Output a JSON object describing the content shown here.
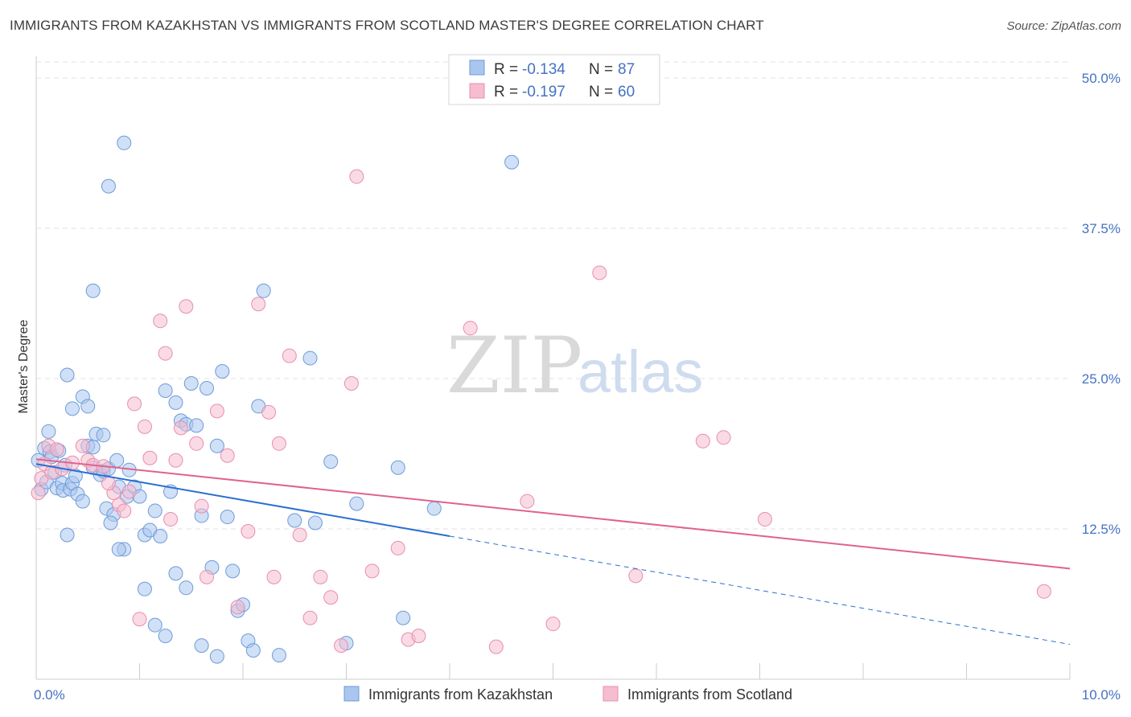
{
  "header": {
    "title": "IMMIGRANTS FROM KAZAKHSTAN VS IMMIGRANTS FROM SCOTLAND MASTER'S DEGREE CORRELATION CHART",
    "source": "Source: ZipAtlas.com"
  },
  "watermark": {
    "zip": "ZIP",
    "atlas": "atlas"
  },
  "colors": {
    "blue_fill": "#a9c6ee",
    "blue_stroke": "#6e9bd8",
    "blue_line": "#2a6fd1",
    "pink_fill": "#f6bcd0",
    "pink_stroke": "#e78fae",
    "pink_line": "#e0628d",
    "tick_blue": "#4472c4",
    "grid": "#e2e2e2"
  },
  "stats": {
    "rows": [
      {
        "r_label": "R = ",
        "r_value": "-0.134",
        "n_label": "N = ",
        "n_value": "87"
      },
      {
        "r_label": "R = ",
        "r_value": "-0.197",
        "n_label": "N = ",
        "n_value": "60"
      }
    ]
  },
  "chart_data": {
    "type": "scatter",
    "title": "IMMIGRANTS FROM KAZAKHSTAN VS IMMIGRANTS FROM SCOTLAND MASTER'S DEGREE CORRELATION CHART",
    "xlabel": "",
    "ylabel": "Master's Degree",
    "xlim": [
      0,
      10
    ],
    "ylim": [
      0,
      50
    ],
    "x_ticks": [
      {
        "value": 0,
        "label": "0.0%"
      },
      {
        "value": 10,
        "label": "10.0%"
      }
    ],
    "x_minor_ticks": [
      1,
      2,
      3,
      4,
      5,
      6,
      7,
      8,
      9,
      10
    ],
    "y_ticks": [
      {
        "value": 12.5,
        "label": "12.5%"
      },
      {
        "value": 25,
        "label": "25.0%"
      },
      {
        "value": 37.5,
        "label": "37.5%"
      },
      {
        "value": 50,
        "label": "50.0%"
      }
    ],
    "grid": true,
    "legend_position": "bottom-center",
    "series": [
      {
        "name": "Immigrants from Kazakhstan",
        "color": "#a9c6ee",
        "trend": {
          "x0": 0,
          "y0": 17.9,
          "x1": 4.0,
          "y1": 11.9,
          "x_dash_end": 10.0,
          "y_dash_end": 2.9
        },
        "points": [
          [
            0.02,
            18.2
          ],
          [
            0.05,
            15.8
          ],
          [
            0.08,
            19.2
          ],
          [
            0.1,
            16.4
          ],
          [
            0.12,
            20.6
          ],
          [
            0.13,
            18.9
          ],
          [
            0.15,
            18.5
          ],
          [
            0.18,
            17.2
          ],
          [
            0.2,
            15.9
          ],
          [
            0.22,
            19.0
          ],
          [
            0.25,
            16.3
          ],
          [
            0.26,
            15.7
          ],
          [
            0.28,
            17.8
          ],
          [
            0.3,
            12.0
          ],
          [
            0.33,
            15.8
          ],
          [
            0.35,
            16.3
          ],
          [
            0.38,
            16.9
          ],
          [
            0.4,
            15.4
          ],
          [
            0.45,
            14.8
          ],
          [
            0.5,
            19.4
          ],
          [
            0.55,
            17.6
          ],
          [
            0.58,
            20.4
          ],
          [
            0.62,
            17.0
          ],
          [
            0.65,
            17.3
          ],
          [
            0.68,
            14.2
          ],
          [
            0.7,
            17.5
          ],
          [
            0.75,
            13.7
          ],
          [
            0.78,
            18.2
          ],
          [
            0.8,
            16.0
          ],
          [
            0.85,
            10.8
          ],
          [
            0.88,
            15.2
          ],
          [
            0.9,
            17.4
          ],
          [
            0.3,
            25.3
          ],
          [
            0.35,
            22.5
          ],
          [
            0.45,
            23.5
          ],
          [
            0.5,
            22.7
          ],
          [
            0.55,
            19.3
          ],
          [
            0.65,
            20.3
          ],
          [
            0.72,
            13.0
          ],
          [
            0.8,
            10.8
          ],
          [
            0.95,
            16.0
          ],
          [
            1.0,
            15.2
          ],
          [
            1.05,
            12.0
          ],
          [
            1.1,
            12.4
          ],
          [
            1.15,
            14.0
          ],
          [
            1.2,
            11.9
          ],
          [
            1.25,
            24.0
          ],
          [
            1.3,
            15.6
          ],
          [
            1.35,
            23.0
          ],
          [
            1.4,
            21.5
          ],
          [
            1.45,
            21.2
          ],
          [
            1.5,
            24.6
          ],
          [
            1.55,
            21.1
          ],
          [
            1.6,
            13.6
          ],
          [
            1.65,
            24.2
          ],
          [
            1.7,
            9.3
          ],
          [
            1.75,
            19.4
          ],
          [
            1.8,
            25.6
          ],
          [
            1.85,
            13.5
          ],
          [
            1.9,
            9.0
          ],
          [
            1.95,
            5.7
          ],
          [
            2.0,
            6.2
          ],
          [
            2.05,
            3.2
          ],
          [
            2.1,
            2.4
          ],
          [
            2.15,
            22.7
          ],
          [
            2.2,
            32.3
          ],
          [
            2.35,
            2.0
          ],
          [
            2.5,
            13.2
          ],
          [
            2.65,
            26.7
          ],
          [
            2.85,
            18.1
          ],
          [
            2.7,
            13.0
          ],
          [
            3.0,
            3.0
          ],
          [
            3.1,
            14.6
          ],
          [
            3.5,
            17.6
          ],
          [
            3.55,
            5.1
          ],
          [
            3.85,
            14.2
          ],
          [
            4.6,
            43.0
          ],
          [
            0.85,
            44.6
          ],
          [
            0.7,
            41.0
          ],
          [
            0.55,
            32.3
          ],
          [
            1.05,
            7.5
          ],
          [
            1.15,
            4.5
          ],
          [
            1.25,
            3.6
          ],
          [
            1.35,
            8.8
          ],
          [
            1.45,
            7.6
          ],
          [
            1.6,
            2.8
          ],
          [
            1.75,
            1.9
          ]
        ]
      },
      {
        "name": "Immigrants from Scotland",
        "color": "#f6bcd0",
        "trend": {
          "x0": 0,
          "y0": 18.3,
          "x1": 10.0,
          "y1": 9.2
        },
        "points": [
          [
            0.02,
            15.5
          ],
          [
            0.05,
            16.7
          ],
          [
            0.08,
            17.9
          ],
          [
            0.12,
            19.4
          ],
          [
            0.15,
            17.2
          ],
          [
            0.2,
            19.1
          ],
          [
            0.25,
            17.5
          ],
          [
            0.35,
            18.0
          ],
          [
            0.45,
            19.4
          ],
          [
            0.5,
            18.2
          ],
          [
            0.55,
            17.8
          ],
          [
            0.65,
            17.7
          ],
          [
            0.75,
            15.5
          ],
          [
            0.8,
            14.5
          ],
          [
            0.85,
            14.0
          ],
          [
            0.9,
            15.6
          ],
          [
            0.95,
            22.9
          ],
          [
            1.05,
            21.0
          ],
          [
            1.1,
            18.4
          ],
          [
            1.2,
            29.8
          ],
          [
            1.25,
            27.1
          ],
          [
            1.3,
            13.3
          ],
          [
            1.35,
            18.2
          ],
          [
            1.4,
            20.9
          ],
          [
            1.45,
            31.0
          ],
          [
            1.55,
            19.6
          ],
          [
            1.65,
            8.5
          ],
          [
            1.75,
            22.3
          ],
          [
            1.85,
            18.6
          ],
          [
            1.95,
            6.0
          ],
          [
            2.05,
            12.3
          ],
          [
            2.15,
            31.2
          ],
          [
            2.25,
            22.2
          ],
          [
            2.3,
            8.5
          ],
          [
            2.35,
            19.6
          ],
          [
            2.45,
            26.9
          ],
          [
            2.55,
            12.0
          ],
          [
            2.65,
            5.1
          ],
          [
            2.75,
            8.5
          ],
          [
            2.85,
            6.8
          ],
          [
            2.95,
            2.8
          ],
          [
            3.05,
            24.6
          ],
          [
            3.1,
            41.8
          ],
          [
            3.25,
            9.0
          ],
          [
            3.5,
            10.9
          ],
          [
            3.6,
            3.3
          ],
          [
            3.7,
            3.6
          ],
          [
            4.2,
            29.2
          ],
          [
            4.45,
            2.7
          ],
          [
            4.75,
            14.8
          ],
          [
            5.0,
            4.6
          ],
          [
            5.45,
            33.8
          ],
          [
            5.8,
            8.6
          ],
          [
            6.45,
            19.8
          ],
          [
            6.65,
            20.1
          ],
          [
            7.05,
            13.3
          ],
          [
            9.75,
            7.3
          ],
          [
            1.0,
            5.0
          ],
          [
            0.7,
            16.3
          ],
          [
            1.6,
            14.4
          ]
        ]
      }
    ]
  },
  "legend": {
    "items": [
      {
        "label": "Immigrants from Kazakhstan"
      },
      {
        "label": "Immigrants from Scotland"
      }
    ]
  }
}
